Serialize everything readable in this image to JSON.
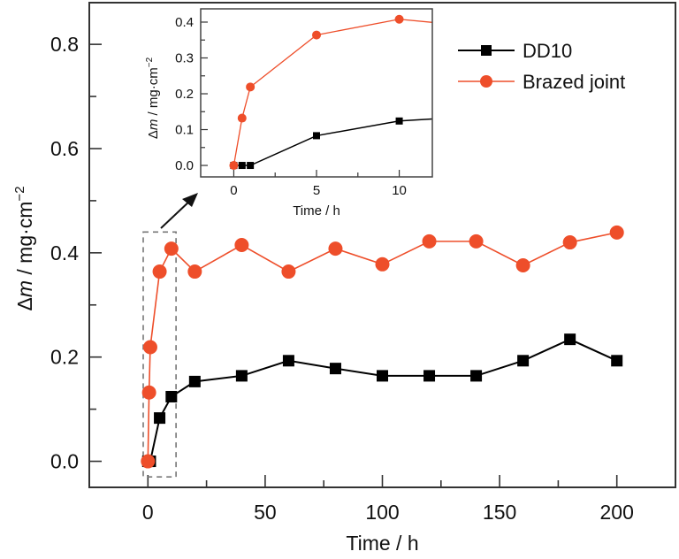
{
  "chart_data": {
    "type": "line",
    "title": "",
    "xlabel": "Time / h",
    "ylabel_parts": {
      "delta": "Δ",
      "var": "m",
      "unit": " / mg·cm",
      "exp": "−2"
    },
    "xlim": [
      -25,
      225
    ],
    "ylim": [
      -0.05,
      0.88
    ],
    "xticks": [
      0,
      50,
      100,
      150,
      200
    ],
    "xtick_labels": [
      "0",
      "50",
      "100",
      "150",
      "200"
    ],
    "xminor_step": 25,
    "yticks": [
      0.0,
      0.2,
      0.4,
      0.6,
      0.8
    ],
    "ytick_labels": [
      "0.0",
      "0.2",
      "0.4",
      "0.6",
      "0.8"
    ],
    "yminor_step": 0.1,
    "grid": false,
    "legend_position": "top-right",
    "series": [
      {
        "name": "DD10",
        "color": "#000000",
        "marker": "square",
        "x": [
          0,
          0.5,
          1,
          5,
          10,
          20,
          40,
          60,
          80,
          100,
          120,
          140,
          160,
          180,
          200
        ],
        "values": [
          0,
          0,
          0,
          0.083,
          0.124,
          0.153,
          0.164,
          0.193,
          0.178,
          0.164,
          0.164,
          0.164,
          0.193,
          0.234,
          0.193
        ]
      },
      {
        "name": "Brazed joint",
        "color": "#EE4E2A",
        "marker": "circle",
        "x": [
          0,
          0.5,
          1,
          5,
          10,
          20,
          40,
          60,
          80,
          100,
          120,
          140,
          160,
          180,
          200
        ],
        "values": [
          0,
          0.132,
          0.219,
          0.364,
          0.408,
          0.364,
          0.415,
          0.364,
          0.408,
          0.378,
          0.422,
          0.422,
          0.376,
          0.42,
          0.439
        ]
      }
    ],
    "zoom_region": {
      "x_range": [
        -2,
        12
      ],
      "y_range": [
        -0.03,
        0.44
      ]
    },
    "inset": {
      "type": "line",
      "xlabel": "Time / h",
      "xlim": [
        -2,
        12
      ],
      "ylim": [
        -0.032,
        0.437
      ],
      "xticks": [
        0,
        5,
        10
      ],
      "xtick_labels": [
        "0",
        "5",
        "10"
      ],
      "xminor_step": 2.5,
      "yticks": [
        0.0,
        0.1,
        0.2,
        0.3,
        0.4
      ],
      "ytick_labels": [
        "0.0",
        "0.1",
        "0.2",
        "0.3",
        "0.4"
      ],
      "yminor_step": 0.05,
      "series_source": "same as main series, clipped to xlim"
    }
  }
}
